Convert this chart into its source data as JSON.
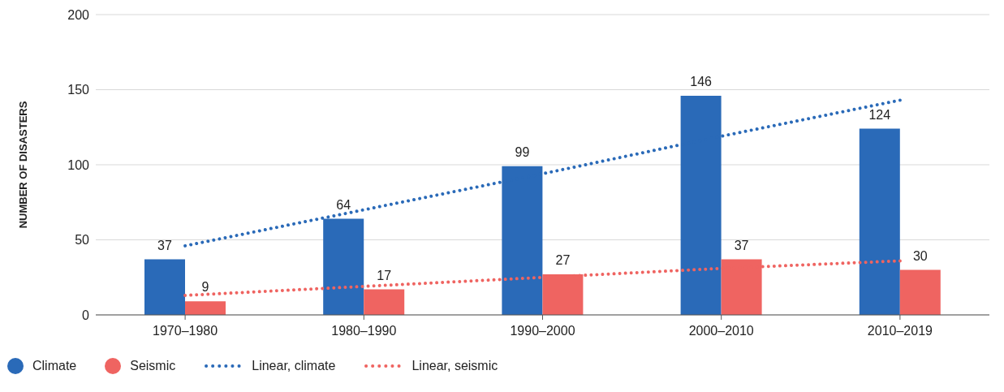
{
  "chart_data": {
    "type": "bar",
    "ylabel": "NUMBER OF DISASTERS",
    "categories": [
      "1970–1980",
      "1980–1990",
      "1990–2000",
      "2000–2010",
      "2010–2019"
    ],
    "series": [
      {
        "name": "Climate",
        "color": "#2a6ab8",
        "values": [
          37,
          64,
          99,
          146,
          124
        ],
        "value_labels": [
          "37",
          "64",
          "99",
          "146",
          "124"
        ]
      },
      {
        "name": "Seismic",
        "color": "#ef6461",
        "values": [
          9,
          17,
          27,
          37,
          30
        ],
        "value_labels": [
          "9",
          "17",
          "27",
          "37",
          "30"
        ]
      },
      {
        "name": "Linear, climate",
        "type": "line",
        "color": "#2a6ab8",
        "line_style": "dotted",
        "x": [
          "1970–1980",
          "1980–1990",
          "1990–2000",
          "2000–2010",
          "2010–2019"
        ],
        "values": [
          46,
          70,
          94,
          119,
          143
        ]
      },
      {
        "name": "Linear, seismic",
        "type": "line",
        "color": "#ef6461",
        "line_style": "dotted",
        "x": [
          "1970–1980",
          "1980–1990",
          "1990–2000",
          "2000–2010",
          "2010–2019"
        ],
        "values": [
          13,
          19,
          25,
          31,
          36
        ]
      }
    ],
    "ylim": [
      0,
      200
    ],
    "yticks": [
      0,
      50,
      100,
      150,
      200
    ],
    "grid": "y",
    "legend": "bottom left",
    "marker": "none"
  }
}
